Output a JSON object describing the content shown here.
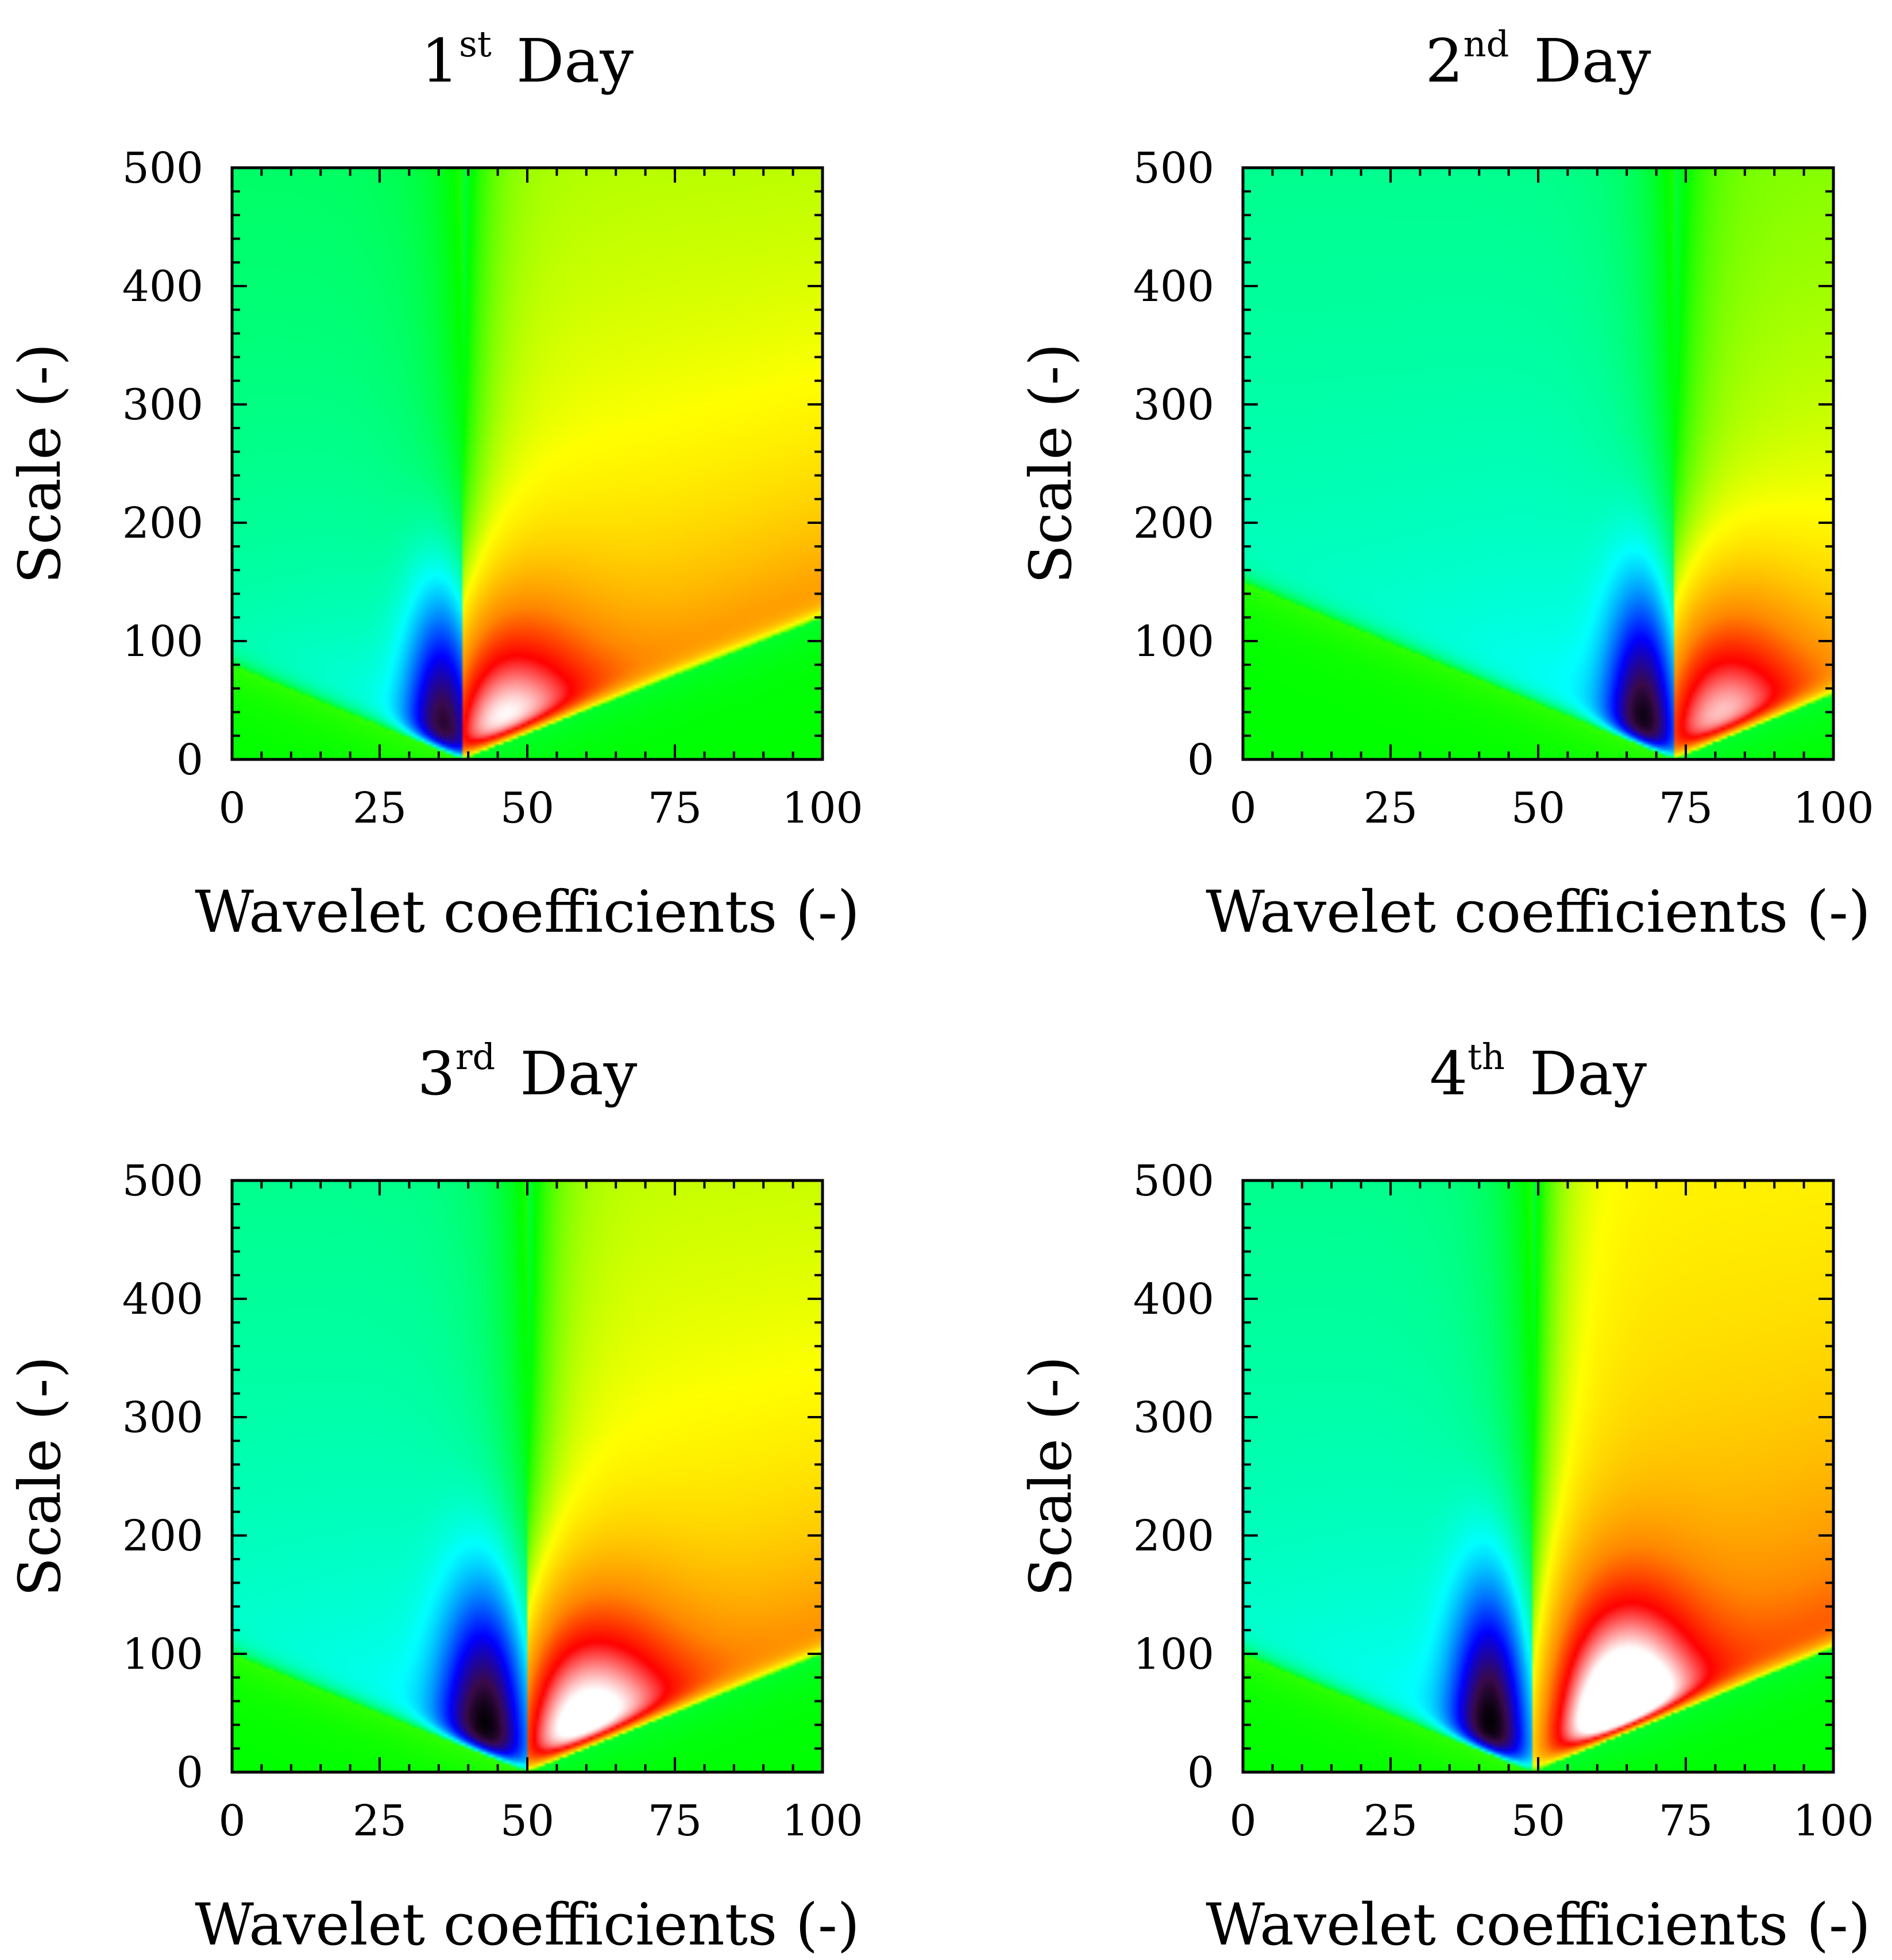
{
  "figure": {
    "colors": {
      "background": "#ffffff",
      "axis": "#000000",
      "colormap": [
        "#000000",
        "#3a0a4a",
        "#0000ff",
        "#00ffff",
        "#00ff00",
        "#ffff00",
        "#ff8800",
        "#ff0000",
        "#ffffff"
      ]
    }
  },
  "chart_data": [
    {
      "type": "heatmap",
      "title_num": "1",
      "title_sup": "st",
      "title_word": "Day",
      "xlabel": "Wavelet coefficients (-)",
      "ylabel": "Scale (-)",
      "xlim": [
        0,
        100
      ],
      "ylim": [
        0,
        500
      ],
      "xticks": [
        "0",
        "25",
        "50",
        "75",
        "100"
      ],
      "yticks": [
        "0",
        "100",
        "200",
        "300",
        "400",
        "500"
      ],
      "center": 39,
      "cone_left": 80,
      "cone_right": 120,
      "low_min": 30,
      "high_max": 45,
      "min_at": {
        "x": 36,
        "y": 12
      },
      "max_at": {
        "x": 43,
        "y": 14
      },
      "left_top_value": 0.4,
      "right_top_value": 0.66,
      "right_intensity": 1.0
    },
    {
      "type": "heatmap",
      "title_num": "2",
      "title_sup": "nd",
      "title_word": "Day",
      "xlabel": "Wavelet coefficients (-)",
      "ylabel": "Scale (-)",
      "xlim": [
        0,
        100
      ],
      "ylim": [
        0,
        500
      ],
      "xticks": [
        "0",
        "25",
        "50",
        "75",
        "100"
      ],
      "yticks": [
        "0",
        "100",
        "200",
        "300",
        "400",
        "500"
      ],
      "center": 73,
      "cone_left": 150,
      "cone_right": 55,
      "low_min": 65,
      "high_max": 80,
      "min_at": {
        "x": 68,
        "y": 18
      },
      "max_at": {
        "x": 79,
        "y": 22
      },
      "left_top_value": 0.37,
      "right_top_value": 0.63,
      "right_intensity": 0.95
    },
    {
      "type": "heatmap",
      "title_num": "3",
      "title_sup": "rd",
      "title_word": "Day",
      "xlabel": "Wavelet coefficients (-)",
      "ylabel": "Scale (-)",
      "xlim": [
        0,
        100
      ],
      "ylim": [
        0,
        500
      ],
      "xticks": [
        "0",
        "25",
        "50",
        "75",
        "100"
      ],
      "yticks": [
        "0",
        "100",
        "200",
        "300",
        "400",
        "500"
      ],
      "center": 50,
      "cone_left": 100,
      "cone_right": 100,
      "low_min": 35,
      "high_max": 60,
      "min_at": {
        "x": 43,
        "y": 28
      },
      "max_at": {
        "x": 58,
        "y": 30
      },
      "left_top_value": 0.37,
      "right_top_value": 0.67,
      "right_intensity": 1.0
    },
    {
      "type": "heatmap",
      "title_num": "4",
      "title_sup": "th",
      "title_word": "Day",
      "xlabel": "Wavelet coefficients (-)",
      "ylabel": "Scale (-)",
      "xlim": [
        0,
        100
      ],
      "ylim": [
        0,
        500
      ],
      "xticks": [
        "0",
        "25",
        "50",
        "75",
        "100"
      ],
      "yticks": [
        "0",
        "100",
        "200",
        "300",
        "400",
        "500"
      ],
      "center": 49,
      "cone_left": 100,
      "cone_right": 105,
      "low_min": 35,
      "high_max": 62,
      "min_at": {
        "x": 42,
        "y": 32
      },
      "max_at": {
        "x": 64,
        "y": 38
      },
      "left_top_value": 0.37,
      "right_top_value": 0.72,
      "right_intensity": 1.0
    }
  ]
}
